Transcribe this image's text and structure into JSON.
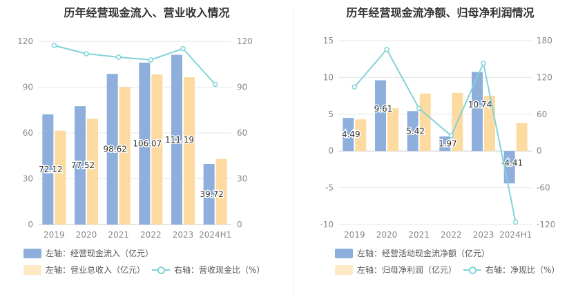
{
  "left_chart": {
    "title": "历年经营现金流入、营业收入情况",
    "legend": {
      "s1": "左轴：经营现金流入（亿元）",
      "s2": "左轴：营业总收入（亿元）",
      "s3": "右轴：营收现金比（%）"
    }
  },
  "right_chart": {
    "title": "历年经营现金流净额、归母净利润情况",
    "legend": {
      "s1": "左轴：经营活动现金流净额（亿元）",
      "s2": "左轴：归母净利润（亿元）",
      "s3": "右轴：净现比（%）"
    }
  },
  "colors": {
    "blue": "#8eaedc",
    "orange": "#fddba0",
    "cyan": "#7fd3d8"
  },
  "chart_data": [
    {
      "type": "bar",
      "categories": [
        "2019",
        "2020",
        "2021",
        "2022",
        "2023",
        "2024H1"
      ],
      "ylim_left": [
        0,
        120
      ],
      "yticks_left": [
        0,
        30,
        60,
        90,
        120
      ],
      "ylim_right": [
        0,
        120
      ],
      "yticks_right": [
        0,
        30,
        60,
        90,
        120
      ],
      "series": [
        {
          "name": "左轴：经营现金流入（亿元）",
          "kind": "bar",
          "axis": "left",
          "color": "#8eaedc",
          "values": [
            72.12,
            77.52,
            98.62,
            106.07,
            111.19,
            39.72
          ],
          "labels": [
            "72.12",
            "77.52",
            "98.62",
            "106.07",
            "111.19",
            "39.72"
          ]
        },
        {
          "name": "左轴：营业总收入（亿元）",
          "kind": "bar",
          "axis": "left",
          "color": "#fddba0",
          "values": [
            61.5,
            69.3,
            90.0,
            98.3,
            96.5,
            43.0
          ]
        },
        {
          "name": "右轴：营收现金比（%）",
          "kind": "line",
          "axis": "right",
          "color": "#7fd3d8",
          "values": [
            117.3,
            111.9,
            109.6,
            107.9,
            115.2,
            91.8
          ]
        }
      ]
    },
    {
      "type": "bar",
      "categories": [
        "2019",
        "2020",
        "2021",
        "2022",
        "2023",
        "2024H1"
      ],
      "ylim_left": [
        -10,
        15
      ],
      "yticks_left": [
        -10,
        -5,
        0,
        5,
        10,
        15
      ],
      "ylim_right": [
        -120,
        180
      ],
      "yticks_right": [
        -120,
        -60,
        0,
        60,
        120,
        180
      ],
      "series": [
        {
          "name": "左轴：经营活动现金流净额（亿元）",
          "kind": "bar",
          "axis": "left",
          "color": "#8eaedc",
          "values": [
            4.49,
            9.61,
            5.42,
            1.97,
            10.74,
            -4.41
          ],
          "labels": [
            "4.49",
            "9.61",
            "5.42",
            "1.97",
            "10.74",
            "-4.41"
          ]
        },
        {
          "name": "左轴：归母净利润（亿元）",
          "kind": "bar",
          "axis": "left",
          "color": "#fddba0",
          "values": [
            4.3,
            5.8,
            7.8,
            7.9,
            7.5,
            3.8
          ]
        },
        {
          "name": "右轴：净现比（%）",
          "kind": "line",
          "axis": "right",
          "color": "#7fd3d8",
          "values": [
            104.4,
            165.7,
            69.5,
            24.9,
            143.2,
            -116.1
          ]
        }
      ]
    }
  ]
}
